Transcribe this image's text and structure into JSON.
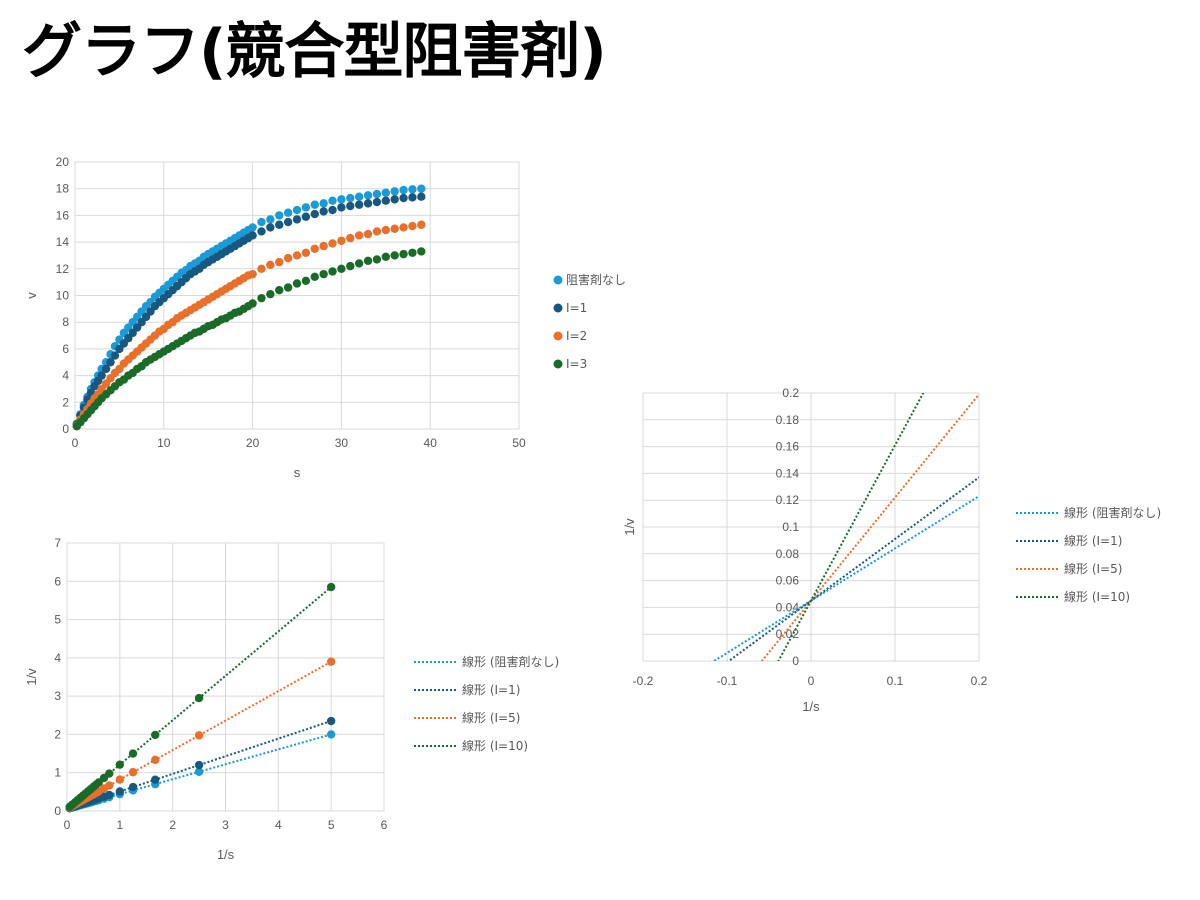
{
  "slide": {
    "title": "グラフ(競合型阻害剤)"
  },
  "colors": {
    "s1": "#1b9ad6",
    "s2": "#19587e",
    "s3": "#e8702a",
    "s4": "#1a6b2a",
    "grid": "#d9d9d9",
    "text": "#595959"
  },
  "chart_data": [
    {
      "id": "michaelis-menten",
      "type": "scatter",
      "xlabel": "s",
      "ylabel": "v",
      "xlim": [
        0,
        50
      ],
      "ylim": [
        0,
        20
      ],
      "xticks": [
        0,
        10,
        20,
        30,
        40,
        50
      ],
      "yticks": [
        0,
        2,
        4,
        6,
        8,
        10,
        12,
        14,
        16,
        18,
        20
      ],
      "grid": true,
      "legend": "right",
      "x": [
        0.2,
        0.6,
        1.0,
        1.4,
        1.8,
        2.2,
        2.6,
        3.0,
        3.5,
        4.0,
        4.5,
        5.0,
        5.5,
        6.0,
        6.5,
        7.0,
        7.5,
        8.0,
        8.5,
        9.0,
        9.5,
        10.0,
        10.5,
        11.0,
        11.5,
        12.0,
        12.5,
        13.0,
        13.5,
        14.0,
        14.5,
        15.0,
        15.5,
        16.0,
        16.5,
        17.0,
        17.5,
        18.0,
        18.5,
        19.0,
        19.5,
        20.0,
        21.0,
        22.0,
        23.0,
        24.0,
        25.0,
        26.0,
        27.0,
        28.0,
        29.0,
        30.0,
        31.0,
        32.0,
        33.0,
        34.0,
        35.0,
        36.0,
        37.0,
        38.0,
        39.0
      ],
      "series": [
        {
          "name": "阻害剤なし",
          "color": "#1b9ad6",
          "values": [
            0.4,
            1.1,
            1.8,
            2.4,
            3.0,
            3.5,
            4.0,
            4.5,
            5.0,
            5.6,
            6.2,
            6.7,
            7.2,
            7.6,
            8.0,
            8.4,
            8.8,
            9.2,
            9.5,
            9.9,
            10.2,
            10.5,
            10.8,
            11.1,
            11.4,
            11.7,
            11.9,
            12.2,
            12.4,
            12.6,
            12.9,
            13.1,
            13.3,
            13.5,
            13.7,
            13.9,
            14.1,
            14.3,
            14.5,
            14.7,
            14.9,
            15.1,
            15.5,
            15.7,
            16.0,
            16.2,
            16.4,
            16.6,
            16.8,
            16.9,
            17.1,
            17.2,
            17.3,
            17.4,
            17.5,
            17.6,
            17.7,
            17.8,
            17.9,
            17.95,
            18.0
          ]
        },
        {
          "name": "I=1",
          "color": "#19587e",
          "values": [
            0.35,
            1.0,
            1.6,
            2.2,
            2.7,
            3.2,
            3.6,
            4.0,
            4.5,
            5.0,
            5.5,
            6.0,
            6.4,
            6.8,
            7.2,
            7.6,
            8.0,
            8.4,
            8.8,
            9.2,
            9.5,
            9.8,
            10.1,
            10.4,
            10.7,
            11.0,
            11.3,
            11.6,
            11.8,
            12.0,
            12.3,
            12.5,
            12.7,
            12.9,
            13.1,
            13.3,
            13.5,
            13.7,
            13.9,
            14.1,
            14.3,
            14.5,
            14.8,
            15.1,
            15.3,
            15.5,
            15.7,
            15.9,
            16.1,
            16.3,
            16.4,
            16.6,
            16.7,
            16.8,
            16.9,
            17.0,
            17.1,
            17.2,
            17.3,
            17.35,
            17.4
          ]
        },
        {
          "name": "I=2",
          "color": "#e8702a",
          "values": [
            0.25,
            0.7,
            1.1,
            1.5,
            1.9,
            2.3,
            2.6,
            3.0,
            3.4,
            3.8,
            4.2,
            4.5,
            4.9,
            5.2,
            5.5,
            5.8,
            6.1,
            6.4,
            6.7,
            7.0,
            7.3,
            7.5,
            7.8,
            8.0,
            8.3,
            8.5,
            8.7,
            8.9,
            9.1,
            9.3,
            9.5,
            9.7,
            9.9,
            10.1,
            10.3,
            10.5,
            10.7,
            10.9,
            11.1,
            11.3,
            11.5,
            11.6,
            12.0,
            12.3,
            12.5,
            12.8,
            13.0,
            13.2,
            13.5,
            13.7,
            13.9,
            14.1,
            14.3,
            14.5,
            14.6,
            14.8,
            14.9,
            15.0,
            15.1,
            15.2,
            15.3
          ]
        },
        {
          "name": "I=3",
          "color": "#1a6b2a",
          "values": [
            0.2,
            0.5,
            0.8,
            1.1,
            1.4,
            1.7,
            2.0,
            2.3,
            2.6,
            2.9,
            3.2,
            3.5,
            3.7,
            4.0,
            4.2,
            4.5,
            4.7,
            5.0,
            5.2,
            5.4,
            5.6,
            5.8,
            6.0,
            6.2,
            6.4,
            6.6,
            6.8,
            7.0,
            7.2,
            7.3,
            7.5,
            7.7,
            7.8,
            8.0,
            8.2,
            8.3,
            8.5,
            8.7,
            8.8,
            9.0,
            9.2,
            9.4,
            9.8,
            10.1,
            10.4,
            10.6,
            10.9,
            11.1,
            11.4,
            11.6,
            11.8,
            12.0,
            12.2,
            12.4,
            12.6,
            12.7,
            12.9,
            13.0,
            13.1,
            13.2,
            13.3
          ]
        }
      ]
    },
    {
      "id": "lineweaver-burk-points",
      "type": "scatter",
      "xlabel": "1/s",
      "ylabel": "1/v",
      "xlim": [
        0,
        6
      ],
      "ylim": [
        0,
        7
      ],
      "xticks": [
        0,
        1,
        2,
        3,
        4,
        5,
        6
      ],
      "yticks": [
        0,
        1,
        2,
        3,
        4,
        5,
        6,
        7
      ],
      "grid": true,
      "legend": "right",
      "x": [
        0.05,
        0.1,
        0.15,
        0.2,
        0.25,
        0.3,
        0.35,
        0.4,
        0.45,
        0.5,
        0.55,
        0.6,
        0.7,
        0.8,
        1.0,
        1.25,
        1.67,
        2.5,
        5.0
      ],
      "series": [
        {
          "name": "線形 (阻害剤なし)",
          "color": "#1b9ad6",
          "slope": 0.39,
          "intercept": 0.05
        },
        {
          "name": "線形 (I=1)",
          "color": "#19587e",
          "slope": 0.46,
          "intercept": 0.05
        },
        {
          "name": "線形 (I=5)",
          "color": "#e8702a",
          "slope": 0.77,
          "intercept": 0.05
        },
        {
          "name": "線形 (I=10)",
          "color": "#1a6b2a",
          "slope": 1.16,
          "intercept": 0.05
        }
      ]
    },
    {
      "id": "lineweaver-burk-intercepts",
      "type": "line",
      "xlabel": "1/s",
      "ylabel": "1/v",
      "xlim": [
        -0.2,
        0.2
      ],
      "ylim": [
        0,
        0.2
      ],
      "xtick_labels": [
        "-0.2",
        "-0.1",
        "0",
        "0.1",
        "0.2"
      ],
      "ytick_labels": [
        "0",
        "0.02",
        "0.04",
        "0.06",
        "0.08",
        "0.1",
        "0.12",
        "0.14",
        "0.16",
        "0.18",
        "0.2"
      ],
      "grid": true,
      "legend": "right",
      "series": [
        {
          "name": "線形 (阻害剤なし)",
          "color": "#1b9ad6",
          "slope": 0.39,
          "intercept": 0.045
        },
        {
          "name": "線形 (I=1)",
          "color": "#19587e",
          "slope": 0.46,
          "intercept": 0.045
        },
        {
          "name": "線形 (I=5)",
          "color": "#e8702a",
          "slope": 0.77,
          "intercept": 0.045
        },
        {
          "name": "線形 (I=10)",
          "color": "#1a6b2a",
          "slope": 1.16,
          "intercept": 0.045
        }
      ]
    }
  ]
}
